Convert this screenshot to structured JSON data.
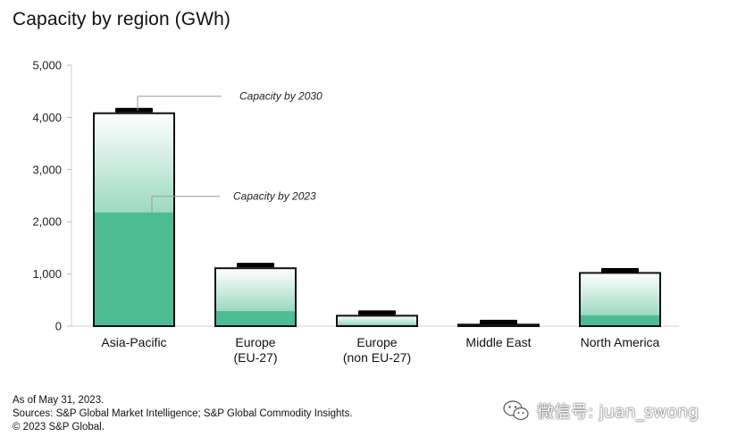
{
  "chart_data": {
    "type": "bar",
    "title": "Capacity by region (GWh)",
    "categories": [
      "Asia-Pacific",
      "Europe\n(EU-27)",
      "Europe\n(non EU-27)",
      "Middle East",
      "North America"
    ],
    "series": [
      {
        "name": "Capacity by 2023",
        "values": [
          2180,
          290,
          25,
          8,
          210
        ]
      },
      {
        "name": "Capacity by 2030",
        "values": [
          4080,
          1110,
          200,
          30,
          1020
        ]
      }
    ],
    "marker_values": [
      4140,
      1170,
      260,
      80,
      1070
    ],
    "ylim": [
      0,
      5000
    ],
    "yticks": [
      0,
      1000,
      2000,
      3000,
      4000,
      5000
    ],
    "ytick_labels": [
      "0",
      "1,000",
      "2,000",
      "3,000",
      "4,000",
      "5,000"
    ],
    "annotations": {
      "capacity_2030": "Capacity by 2030",
      "capacity_2023": "Capacity by 2023"
    },
    "colors": {
      "base": "#4dbb94",
      "top_light": "#ffffff",
      "top_dark": "#9dd9c2",
      "outline": "#111111"
    }
  },
  "footer": {
    "line1": "As of May 31, 2023.",
    "line2": "Sources: S&P Global Market Intelligence; S&P Global Commodity Insights.",
    "line3": "© 2023 S&P Global."
  },
  "watermark": {
    "text": "微信号: juan_swong"
  }
}
